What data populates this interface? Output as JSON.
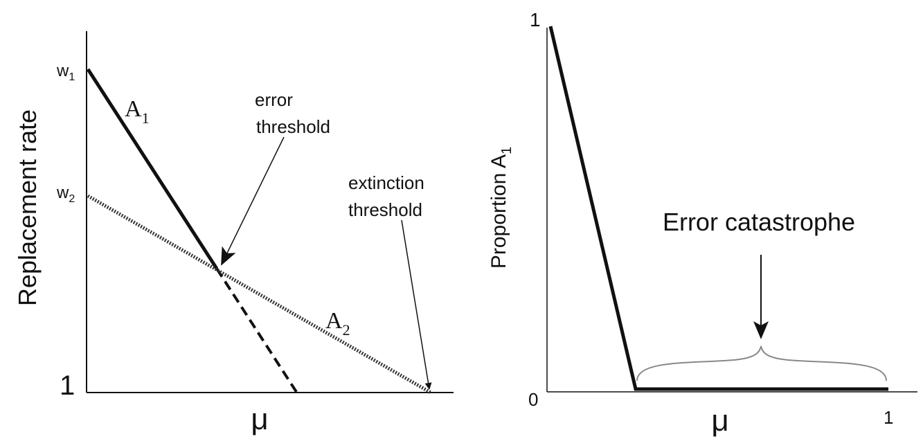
{
  "left_panel": {
    "y_label": "Replacement rate",
    "x_label": "μ",
    "w1": {
      "main": "w",
      "sub": "1"
    },
    "w2": {
      "main": "w",
      "sub": "2"
    },
    "y_origin": "1",
    "a1": {
      "main": "A",
      "sub": "1"
    },
    "a2": {
      "main": "A",
      "sub": "2"
    },
    "error_threshold": [
      "error",
      "threshold"
    ],
    "extinction_threshold": [
      "extinction",
      "threshold"
    ]
  },
  "right_panel": {
    "y_label": {
      "main": "Proportion A",
      "sub": "1"
    },
    "x_label": "μ",
    "y_top": "1",
    "y_origin": "0",
    "x_end": "1",
    "annotation": "Error catastrophe"
  }
}
